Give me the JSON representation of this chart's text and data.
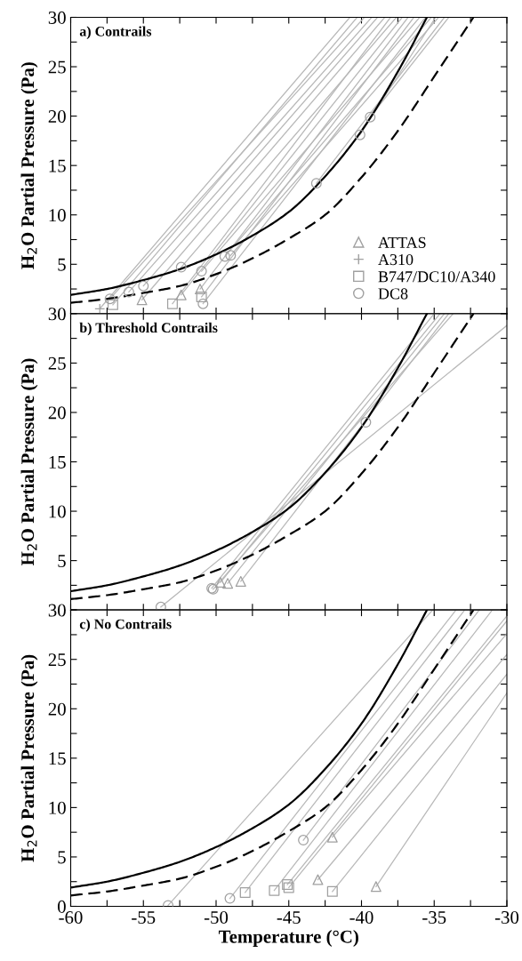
{
  "chart_data": [
    {
      "type": "line",
      "title": "a) Contrails",
      "ylabel": "H$_{2}$O Partial Pressure (Pa)",
      "xlim": [
        -60,
        -30
      ],
      "ylim": [
        0,
        30
      ],
      "xticks": [
        -60,
        {
          "value": -57.5,
          "label": null
        },
        -55,
        {
          "value": -52.5,
          "label": null
        },
        -50,
        {
          "value": -47.5,
          "label": null
        },
        -45,
        {
          "value": -42.5,
          "label": null
        },
        -40,
        {
          "value": -37.5,
          "label": null
        },
        -35,
        {
          "value": -32.5,
          "label": null
        },
        -30
      ],
      "yticks": [
        {
          "value": 0,
          "label": null
        },
        {
          "value": 2.5,
          "label": null
        },
        5,
        {
          "value": 7.5,
          "label": null
        },
        10,
        {
          "value": 12.5,
          "label": null
        },
        15,
        {
          "value": 17.5,
          "label": null
        },
        20,
        {
          "value": 22.5,
          "label": null
        },
        25,
        {
          "value": 27.5,
          "label": null
        },
        30
      ],
      "tick_labels": "y",
      "legend": "bottom right",
      "grid": false,
      "series": [
        {
          "type": "line",
          "x": [
            -58.0,
            -40.8
          ],
          "values": [
            0.5,
            30
          ],
          "color": "#b8b8b8"
        },
        {
          "type": "line",
          "x": [
            -57.1,
            -40.3
          ],
          "values": [
            0.9,
            30
          ],
          "color": "#b8b8b8"
        },
        {
          "type": "line",
          "x": [
            -57.3,
            -39.8
          ],
          "values": [
            1.5,
            30
          ],
          "color": "#b8b8b8"
        },
        {
          "type": "line",
          "x": [
            -56.0,
            -39.3
          ],
          "values": [
            2.2,
            30
          ],
          "color": "#b8b8b8"
        },
        {
          "type": "line",
          "x": [
            -55.0,
            -38.9
          ],
          "values": [
            2.8,
            30
          ],
          "color": "#b8b8b8"
        },
        {
          "type": "line",
          "x": [
            -55.1,
            -38.4
          ],
          "values": [
            1.4,
            30
          ],
          "color": "#b8b8b8"
        },
        {
          "type": "line",
          "x": [
            -53.0,
            -38.0
          ],
          "values": [
            1.0,
            30
          ],
          "color": "#b8b8b8"
        },
        {
          "type": "line",
          "x": [
            -52.4,
            -37.6
          ],
          "values": [
            4.7,
            30
          ],
          "color": "#b8b8b8"
        },
        {
          "type": "line",
          "x": [
            -52.4,
            -37.2
          ],
          "values": [
            1.9,
            30
          ],
          "color": "#b8b8b8"
        },
        {
          "type": "line",
          "x": [
            -51.1,
            -36.8
          ],
          "values": [
            2.5,
            30
          ],
          "color": "#b8b8b8"
        },
        {
          "type": "line",
          "x": [
            -51.0,
            -36.4
          ],
          "values": [
            1.7,
            30
          ],
          "color": "#b8b8b8"
        },
        {
          "type": "line",
          "x": [
            -51.0,
            -36.0
          ],
          "values": [
            4.3,
            30
          ],
          "color": "#b8b8b8"
        },
        {
          "type": "line",
          "x": [
            -50.9,
            -35.6
          ],
          "values": [
            1.0,
            30
          ],
          "color": "#b8b8b8"
        },
        {
          "type": "line",
          "x": [
            -49.4,
            -35.2
          ],
          "values": [
            5.8,
            30
          ],
          "color": "#b8b8b8"
        },
        {
          "type": "line",
          "x": [
            -49.0,
            -34.7
          ],
          "values": [
            5.9,
            30
          ],
          "color": "#b8b8b8"
        },
        {
          "type": "line",
          "x": [
            -43.1,
            -34.3
          ],
          "values": [
            13.2,
            30
          ],
          "color": "#b8b8b8"
        },
        {
          "type": "line",
          "x": [
            -40.1,
            -34.9
          ],
          "values": [
            18.1,
            30
          ],
          "color": "#b8b8b8"
        },
        {
          "type": "line",
          "x": [
            -39.4,
            -34.0
          ],
          "values": [
            19.9,
            30
          ],
          "color": "#b8b8b8"
        },
        {
          "type": "line",
          "line_style": "solid",
          "color": "#000000",
          "x": [
            -60,
            -57.5,
            -55,
            -52.5,
            -50,
            -47.5,
            -45,
            -42.5,
            -40,
            -37.5,
            -35.5
          ],
          "values": [
            1.9,
            2.5,
            3.4,
            4.5,
            6.0,
            7.9,
            10.3,
            13.9,
            18.5,
            24.5,
            30
          ]
        },
        {
          "type": "line",
          "line_style": "dashed",
          "color": "#000000",
          "x": [
            -60,
            -57.5,
            -55,
            -52.5,
            -50,
            -47.5,
            -45,
            -42.5,
            -40,
            -37.5,
            -35,
            -32.3
          ],
          "values": [
            1.1,
            1.5,
            2.1,
            2.8,
            4.0,
            5.6,
            7.6,
            10.0,
            13.8,
            18.5,
            24.0,
            30
          ]
        },
        {
          "type": "scatter",
          "name": "ATTAS",
          "marker": "triangle",
          "color": "#a0a0a0",
          "x": [
            -55.1,
            -52.4,
            -51.1
          ],
          "values": [
            1.4,
            1.9,
            2.5
          ]
        },
        {
          "type": "scatter",
          "name": "A310",
          "marker": "cross",
          "color": "#a0a0a0",
          "x": [
            -58.0
          ],
          "values": [
            0.5
          ]
        },
        {
          "type": "scatter",
          "name": "B747/DC10/A340",
          "marker": "square",
          "color": "#a0a0a0",
          "x": [
            -57.1,
            -53.0,
            -51.0
          ],
          "values": [
            0.9,
            1.0,
            1.7
          ]
        },
        {
          "type": "scatter",
          "name": "DC8",
          "marker": "circle",
          "color": "#a0a0a0",
          "x": [
            -57.3,
            -56.0,
            -55.0,
            -52.4,
            -51.0,
            -50.9,
            -49.4,
            -49.0,
            -43.1,
            -40.1,
            -39.4
          ],
          "values": [
            1.5,
            2.2,
            2.8,
            4.7,
            4.3,
            1.0,
            5.8,
            5.9,
            13.2,
            18.1,
            19.9
          ]
        }
      ]
    },
    {
      "type": "line",
      "title": "b) Threshold Contrails",
      "ylabel": "H$_{2}$O Partial Pressure (Pa)",
      "xlim": [
        -60,
        -30
      ],
      "ylim": [
        0,
        30
      ],
      "xticks": [
        -60,
        {
          "value": -57.5,
          "label": null
        },
        -55,
        {
          "value": -52.5,
          "label": null
        },
        -50,
        {
          "value": -47.5,
          "label": null
        },
        -45,
        {
          "value": -42.5,
          "label": null
        },
        -40,
        {
          "value": -37.5,
          "label": null
        },
        -35,
        {
          "value": -32.5,
          "label": null
        },
        -30
      ],
      "yticks": [
        {
          "value": 0,
          "label": null
        },
        {
          "value": 2.5,
          "label": null
        },
        5,
        {
          "value": 7.5,
          "label": null
        },
        10,
        {
          "value": 12.5,
          "label": null
        },
        15,
        {
          "value": 17.5,
          "label": null
        },
        20,
        {
          "value": 22.5,
          "label": null
        },
        25,
        {
          "value": 27.5,
          "label": null
        },
        30
      ],
      "tick_labels": "y",
      "grid": false,
      "series": [
        {
          "type": "line",
          "x": [
            -50.3,
            -35.0
          ],
          "values": [
            2.2,
            30
          ],
          "color": "#b8b8b8"
        },
        {
          "type": "line",
          "x": [
            -49.7,
            -34.6
          ],
          "values": [
            2.8,
            30
          ],
          "color": "#b8b8b8"
        },
        {
          "type": "line",
          "x": [
            -49.2,
            -34.3
          ],
          "values": [
            2.7,
            30
          ],
          "color": "#b8b8b8"
        },
        {
          "type": "line",
          "x": [
            -48.3,
            -34.0
          ],
          "values": [
            2.9,
            30
          ],
          "color": "#b8b8b8"
        },
        {
          "type": "line",
          "x": [
            -50.2,
            -33.7
          ],
          "values": [
            2.1,
            30
          ],
          "color": "#b8b8b8"
        },
        {
          "type": "line",
          "x": [
            -53.8,
            -30
          ],
          "values": [
            0.3,
            28.8
          ],
          "color": "#b8b8b8"
        },
        {
          "type": "line",
          "line_style": "solid",
          "color": "#000000",
          "x": [
            -60,
            -57.5,
            -55,
            -52.5,
            -50,
            -47.5,
            -45,
            -42.5,
            -40,
            -37.5,
            -35.5
          ],
          "values": [
            1.9,
            2.5,
            3.4,
            4.5,
            6.0,
            7.9,
            10.3,
            13.9,
            18.5,
            24.5,
            30
          ]
        },
        {
          "type": "line",
          "line_style": "dashed",
          "color": "#000000",
          "x": [
            -60,
            -57.5,
            -55,
            -52.5,
            -50,
            -47.5,
            -45,
            -42.5,
            -40,
            -37.5,
            -35,
            -32.3
          ],
          "values": [
            1.1,
            1.5,
            2.1,
            2.8,
            4.0,
            5.6,
            7.6,
            10.0,
            13.8,
            18.5,
            24.0,
            30
          ]
        },
        {
          "type": "scatter",
          "marker": "triangle",
          "color": "#a0a0a0",
          "x": [
            -49.7,
            -49.2,
            -48.3
          ],
          "values": [
            2.8,
            2.7,
            2.9
          ]
        },
        {
          "type": "scatter",
          "marker": "circle",
          "color": "#a0a0a0",
          "x": [
            -50.3,
            -50.2,
            -53.8,
            -39.7
          ],
          "values": [
            2.2,
            2.1,
            0.3,
            19.0
          ]
        }
      ]
    },
    {
      "type": "line",
      "title": "c) No Contrails",
      "xlabel": "Temperature (°C)",
      "ylabel": "H$_{2}$O Partial Pressure (Pa)",
      "xlim": [
        -60,
        -30
      ],
      "ylim": [
        0,
        30
      ],
      "xticks": [
        -60,
        {
          "value": -57.5,
          "label": null
        },
        -55,
        {
          "value": -52.5,
          "label": null
        },
        -50,
        {
          "value": -47.5,
          "label": null
        },
        -45,
        {
          "value": -42.5,
          "label": null
        },
        -40,
        {
          "value": -37.5,
          "label": null
        },
        -35,
        {
          "value": -32.5,
          "label": null
        },
        -30
      ],
      "yticks": [
        0,
        {
          "value": 2.5,
          "label": null
        },
        5,
        {
          "value": 7.5,
          "label": null
        },
        10,
        {
          "value": 12.5,
          "label": null
        },
        15,
        {
          "value": 17.5,
          "label": null
        },
        20,
        {
          "value": 22.5,
          "label": null
        },
        25,
        {
          "value": 27.5,
          "label": null
        },
        30
      ],
      "grid": false,
      "series": [
        {
          "type": "line",
          "x": [
            -53.3,
            -35.1
          ],
          "values": [
            0.1,
            30
          ],
          "color": "#b8b8b8"
        },
        {
          "type": "line",
          "x": [
            -49.05,
            -33.5
          ],
          "values": [
            0.8,
            30
          ],
          "color": "#b8b8b8"
        },
        {
          "type": "line",
          "x": [
            -48.0,
            -32.9
          ],
          "values": [
            1.4,
            30
          ],
          "color": "#b8b8b8"
        },
        {
          "type": "line",
          "x": [
            -44.0,
            -31.9
          ],
          "values": [
            6.7,
            30
          ],
          "color": "#b8b8b8"
        },
        {
          "type": "line",
          "x": [
            -46.0,
            -31.0
          ],
          "values": [
            1.6,
            30
          ],
          "color": "#b8b8b8"
        },
        {
          "type": "line",
          "x": [
            -45.1,
            -30
          ],
          "values": [
            2.2,
            29.4
          ],
          "color": "#b8b8b8"
        },
        {
          "type": "line",
          "x": [
            -45.0,
            -30
          ],
          "values": [
            1.9,
            28.9
          ],
          "color": "#b8b8b8"
        },
        {
          "type": "line",
          "x": [
            -42.0,
            -30
          ],
          "values": [
            7.0,
            27.6
          ],
          "color": "#b8b8b8"
        },
        {
          "type": "line",
          "x": [
            -43.0,
            -30
          ],
          "values": [
            2.7,
            25.5
          ],
          "color": "#b8b8b8"
        },
        {
          "type": "line",
          "x": [
            -42.0,
            -30
          ],
          "values": [
            1.5,
            23.5
          ],
          "color": "#b8b8b8"
        },
        {
          "type": "line",
          "x": [
            -39.0,
            -30
          ],
          "values": [
            2.0,
            21.6
          ],
          "color": "#b8b8b8"
        },
        {
          "type": "line",
          "line_style": "solid",
          "color": "#000000",
          "x": [
            -60,
            -57.5,
            -55,
            -52.5,
            -50,
            -47.5,
            -45,
            -42.5,
            -40,
            -37.5,
            -35.5
          ],
          "values": [
            1.9,
            2.5,
            3.4,
            4.5,
            6.0,
            7.9,
            10.3,
            13.9,
            18.5,
            24.5,
            30
          ]
        },
        {
          "type": "line",
          "line_style": "dashed",
          "color": "#000000",
          "x": [
            -60,
            -57.5,
            -55,
            -52.5,
            -50,
            -47.5,
            -45,
            -42.5,
            -40,
            -37.5,
            -35,
            -32.3
          ],
          "values": [
            1.1,
            1.5,
            2.1,
            2.8,
            4.0,
            5.6,
            7.6,
            10.0,
            13.8,
            18.5,
            24.0,
            30
          ]
        },
        {
          "type": "scatter",
          "marker": "triangle",
          "color": "#a0a0a0",
          "x": [
            -43.0,
            -42.0,
            -39.0
          ],
          "values": [
            2.7,
            7.0,
            2.0
          ]
        },
        {
          "type": "scatter",
          "marker": "square",
          "color": "#a0a0a0",
          "x": [
            -48.0,
            -46.0,
            -45.1,
            -45.0,
            -42.0
          ],
          "values": [
            1.4,
            1.6,
            2.2,
            1.9,
            1.5
          ]
        },
        {
          "type": "scatter",
          "marker": "circle",
          "color": "#a0a0a0",
          "x": [
            -53.3,
            -49.05,
            -44.0
          ],
          "values": [
            0.1,
            0.8,
            6.7
          ]
        }
      ]
    }
  ]
}
